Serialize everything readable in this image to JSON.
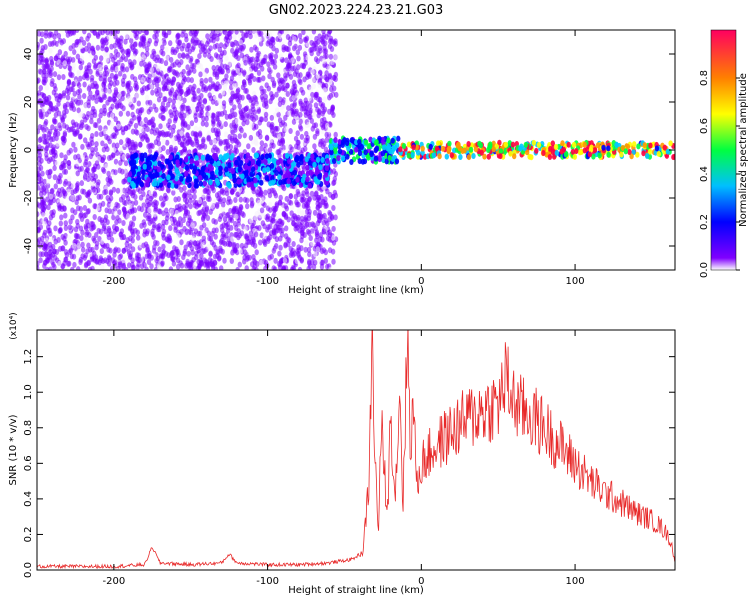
{
  "title": "GN02.2023.224.23.21.G03",
  "colors": {
    "snr_line": "#e82a2a",
    "spectrogram_colormap": [
      "#f5f0fc",
      "#7a00ff",
      "#0000ff",
      "#00c8ff",
      "#00ff40",
      "#ffff00",
      "#ff9900",
      "#ff0040"
    ]
  },
  "chart_data": [
    {
      "type": "heatmap",
      "xlabel": "Height of straight line (km)",
      "ylabel": "Frequency (Hz)",
      "xlim": [
        -250,
        165
      ],
      "ylim": [
        -50,
        50
      ],
      "x_ticks": [
        "-200",
        "-100",
        "0",
        "100"
      ],
      "x_tick_values": [
        -200,
        -100,
        0,
        100
      ],
      "y_ticks": [
        "-40",
        "-20",
        "0",
        "20",
        "40"
      ],
      "y_tick_values": [
        -40,
        -20,
        0,
        20,
        40
      ],
      "colorbar": {
        "label": "Normalized spectral amplitude",
        "range": [
          0.0,
          1.0
        ],
        "ticks": [
          "0.0",
          "0.2",
          "0.4",
          "0.6",
          "0.8"
        ],
        "tick_values": [
          0.0,
          0.2,
          0.4,
          0.6,
          0.8
        ]
      },
      "regions": [
        {
          "x_range": [
            -250,
            -55
          ],
          "freq_range": [
            -50,
            50
          ],
          "amplitude": 0.15,
          "note_level": "broadband low-amplitude noise"
        },
        {
          "x_range": [
            -190,
            -60
          ],
          "freq_range": [
            -15,
            -2
          ],
          "amplitude": 0.35
        },
        {
          "x_range": [
            -60,
            -15
          ],
          "freq_range": [
            -5,
            5
          ],
          "amplitude": 0.5
        },
        {
          "x_range": [
            -15,
            165
          ],
          "freq_range": [
            -3,
            3
          ],
          "amplitude": 0.9
        }
      ]
    },
    {
      "type": "line",
      "xlabel": "Height of straight line (km)",
      "ylabel": "SNR (10 * v/v)",
      "y_multiplier": "(x10⁴)",
      "xlim": [
        -250,
        165
      ],
      "ylim": [
        0,
        1.35
      ],
      "x_ticks": [
        "-200",
        "-100",
        "0",
        "100"
      ],
      "x_tick_values": [
        -200,
        -100,
        0,
        100
      ],
      "y_ticks": [
        "0.0",
        "0.2",
        "0.4",
        "0.6",
        "0.8",
        "1.0",
        "1.2"
      ],
      "y_tick_values": [
        0.0,
        0.2,
        0.4,
        0.6,
        0.8,
        1.0,
        1.2
      ],
      "series": [
        {
          "x": [
            -250,
            -200,
            -180,
            -175,
            -170,
            -150,
            -130,
            -125,
            -120,
            -100,
            -80,
            -60,
            -45,
            -38,
            -34,
            -32,
            -30,
            -28,
            -26,
            -22,
            -20,
            -17,
            -14,
            -12,
            -9,
            -7,
            -5,
            -3,
            0,
            10,
            20,
            30,
            40,
            50,
            55,
            60,
            65,
            70,
            80,
            90,
            100,
            110,
            120,
            130,
            140,
            150,
            155,
            160,
            163,
            165
          ],
          "y": [
            0.02,
            0.02,
            0.03,
            0.13,
            0.04,
            0.03,
            0.04,
            0.09,
            0.04,
            0.03,
            0.03,
            0.04,
            0.06,
            0.1,
            0.5,
            1.3,
            0.6,
            0.2,
            0.8,
            0.3,
            0.9,
            0.4,
            1.05,
            0.35,
            1.33,
            0.7,
            0.95,
            0.45,
            0.6,
            0.7,
            0.78,
            0.85,
            0.9,
            0.93,
            1.08,
            0.95,
            0.9,
            0.88,
            0.8,
            0.7,
            0.6,
            0.5,
            0.43,
            0.38,
            0.32,
            0.28,
            0.25,
            0.2,
            0.14,
            0.03
          ]
        }
      ]
    }
  ]
}
